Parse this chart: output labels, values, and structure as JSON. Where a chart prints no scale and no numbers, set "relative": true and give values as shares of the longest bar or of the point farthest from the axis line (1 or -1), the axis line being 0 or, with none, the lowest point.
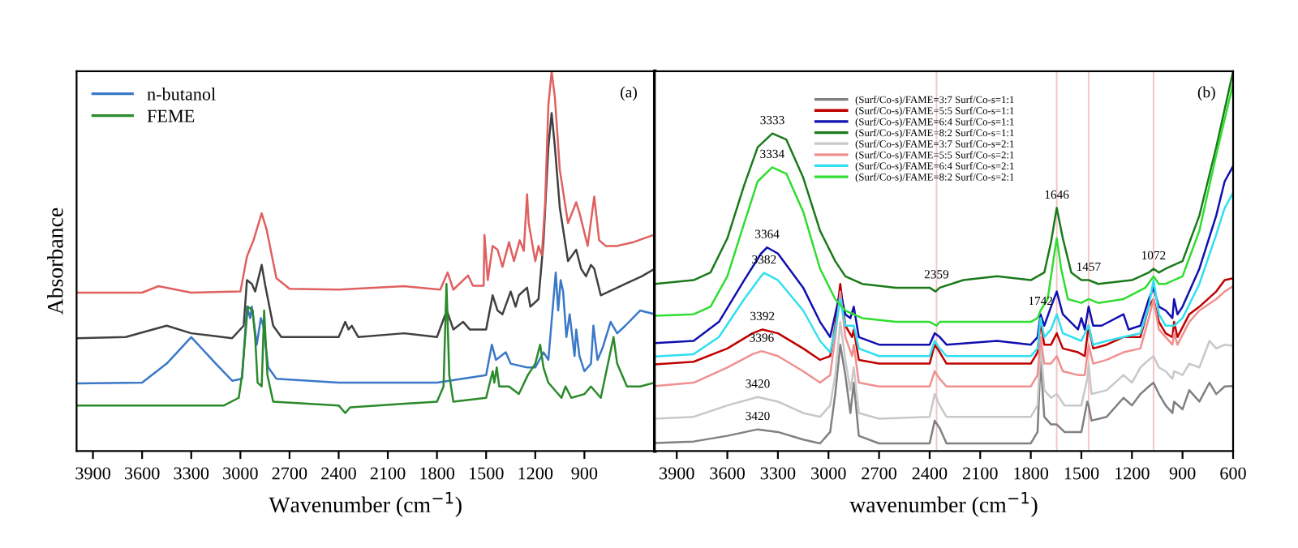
{
  "chart_data": [
    {
      "type": "line",
      "xlabel": "Wavenumber (cm$^{−1}$)",
      "ylabel": "Absorbance",
      "annotations": [
        "(a)"
      ],
      "relative": true,
      "tick_labels": "x",
      "legend": "top left",
      "grid": false,
      "xlim": [
        4000,
        470
      ],
      "xticks": [
        3900,
        3600,
        3300,
        3000,
        2700,
        2400,
        2100,
        1800,
        1500,
        1200,
        900
      ],
      "series": [
        {
          "color": "#404040",
          "x": [
            4000,
            3700,
            3450,
            3300,
            3050,
            2980,
            2960,
            2930,
            2910,
            2870,
            2850,
            2800,
            2750,
            2400,
            2360,
            2340,
            2320,
            2280,
            2000,
            1800,
            1740,
            1700,
            1640,
            1600,
            1500,
            1460,
            1430,
            1400,
            1350,
            1320,
            1300,
            1250,
            1230,
            1180,
            1150,
            1120,
            1100,
            1080,
            1050,
            1000,
            950,
            920,
            890,
            860,
            840,
            800,
            750,
            650,
            550,
            470
          ],
          "values": [
            0.297,
            0.3,
            0.33,
            0.31,
            0.297,
            0.33,
            0.45,
            0.44,
            0.42,
            0.49,
            0.44,
            0.33,
            0.3,
            0.3,
            0.34,
            0.32,
            0.33,
            0.3,
            0.31,
            0.3,
            0.37,
            0.32,
            0.34,
            0.32,
            0.32,
            0.41,
            0.37,
            0.36,
            0.42,
            0.38,
            0.41,
            0.43,
            0.38,
            0.4,
            0.55,
            0.8,
            0.89,
            0.8,
            0.64,
            0.5,
            0.53,
            0.48,
            0.46,
            0.49,
            0.48,
            0.41,
            0.42,
            0.44,
            0.46,
            0.48
          ]
        },
        {
          "color": "#e06060",
          "x": [
            4000,
            3600,
            3500,
            3300,
            3000,
            2960,
            2920,
            2870,
            2840,
            2780,
            2700,
            2400,
            2000,
            1780,
            1735,
            1700,
            1610,
            1580,
            1515,
            1510,
            1490,
            1460,
            1430,
            1400,
            1360,
            1330,
            1295,
            1270,
            1250,
            1240,
            1200,
            1180,
            1160,
            1140,
            1120,
            1100,
            1080,
            1050,
            1000,
            950,
            930,
            880,
            840,
            810,
            770,
            700,
            600,
            470
          ],
          "values": [
            0.417,
            0.417,
            0.434,
            0.417,
            0.42,
            0.512,
            0.555,
            0.626,
            0.583,
            0.455,
            0.427,
            0.425,
            0.434,
            0.425,
            0.47,
            0.425,
            0.462,
            0.435,
            0.435,
            0.569,
            0.45,
            0.54,
            0.53,
            0.485,
            0.55,
            0.5,
            0.555,
            0.527,
            0.676,
            0.6,
            0.5,
            0.54,
            0.515,
            0.65,
            0.91,
            1.0,
            0.93,
            0.74,
            0.6,
            0.655,
            0.627,
            0.54,
            0.67,
            0.555,
            0.54,
            0.54,
            0.55,
            0.57
          ]
        },
        {
          "name": "n-butanol",
          "color": "#3a78c8",
          "x": [
            4000,
            3600,
            3450,
            3300,
            3150,
            3050,
            2990,
            2960,
            2940,
            2930,
            2900,
            2875,
            2860,
            2830,
            2780,
            2400,
            1800,
            1500,
            1465,
            1440,
            1380,
            1350,
            1250,
            1200,
            1150,
            1120,
            1075,
            1060,
            1045,
            1030,
            1010,
            990,
            960,
            950,
            930,
            900,
            860,
            845,
            820,
            790,
            740,
            700,
            650,
            560,
            470
          ],
          "values": [
            0.178,
            0.18,
            0.23,
            0.3,
            0.23,
            0.185,
            0.19,
            0.38,
            0.35,
            0.38,
            0.28,
            0.35,
            0.33,
            0.22,
            0.19,
            0.18,
            0.18,
            0.2,
            0.28,
            0.24,
            0.26,
            0.23,
            0.22,
            0.22,
            0.26,
            0.24,
            0.47,
            0.37,
            0.45,
            0.42,
            0.3,
            0.36,
            0.25,
            0.32,
            0.25,
            0.21,
            0.23,
            0.33,
            0.24,
            0.27,
            0.34,
            0.31,
            0.33,
            0.37,
            0.36
          ]
        },
        {
          "name": "FEME",
          "color": "#2a8a2a",
          "x": [
            4000,
            3100,
            3010,
            2990,
            2955,
            2925,
            2910,
            2895,
            2870,
            2855,
            2835,
            2800,
            2400,
            2360,
            2330,
            1800,
            1760,
            1742,
            1725,
            1700,
            1500,
            1460,
            1450,
            1435,
            1420,
            1360,
            1300,
            1245,
            1200,
            1170,
            1150,
            1120,
            1040,
            1015,
            980,
            900,
            860,
            800,
            722,
            700,
            640,
            560,
            470
          ],
          "values": [
            0.12,
            0.12,
            0.14,
            0.2,
            0.38,
            0.37,
            0.3,
            0.18,
            0.17,
            0.37,
            0.2,
            0.13,
            0.12,
            0.1,
            0.115,
            0.13,
            0.17,
            0.44,
            0.2,
            0.13,
            0.14,
            0.21,
            0.18,
            0.22,
            0.17,
            0.17,
            0.15,
            0.2,
            0.23,
            0.28,
            0.22,
            0.18,
            0.14,
            0.17,
            0.14,
            0.15,
            0.17,
            0.14,
            0.3,
            0.23,
            0.17,
            0.17,
            0.18
          ]
        }
      ]
    },
    {
      "type": "line",
      "xlabel": "wavenumber (cm$^{−1}$)",
      "relative": true,
      "tick_labels": "x",
      "legend": "top",
      "grid": false,
      "xlim": [
        4030,
        600
      ],
      "xticks": [
        3900,
        3600,
        3300,
        3000,
        2700,
        2400,
        2100,
        1800,
        1500,
        1200,
        900,
        600
      ],
      "ref_lines": [
        {
          "axis": "x",
          "value": 2359,
          "color": "#f0c8c8"
        },
        {
          "axis": "x",
          "value": 1646,
          "color": "#f0c8c8"
        },
        {
          "axis": "x",
          "value": 1457,
          "color": "#f0c8c8"
        },
        {
          "axis": "x",
          "value": 1072,
          "color": "#f0c8c8"
        }
      ],
      "annotations": [
        "(b)",
        {
          "text": "3333",
          "x": 3333,
          "y": 0.836
        },
        {
          "text": "3334",
          "x": 3334,
          "y": 0.747
        },
        {
          "text": "3364",
          "x": 3364,
          "y": 0.536
        },
        {
          "text": "3382",
          "x": 3382,
          "y": 0.469
        },
        {
          "text": "3392",
          "x": 3392,
          "y": 0.32
        },
        {
          "text": "3396",
          "x": 3396,
          "y": 0.263
        },
        {
          "text": "3420",
          "x": 3420,
          "y": 0.142
        },
        {
          "text": "3420",
          "x": 3420,
          "y": 0.057
        },
        {
          "text": "2359",
          "x": 2359,
          "y": 0.43
        },
        {
          "text": "1742",
          "x": 1742,
          "y": 0.36
        },
        {
          "text": "1646",
          "x": 1646,
          "y": 0.64
        },
        {
          "text": "1457",
          "x": 1457,
          "y": 0.45
        },
        {
          "text": "1072",
          "x": 1072,
          "y": 0.48
        }
      ],
      "series": [
        {
          "name": "(Surf/Co-s)/FAME=3:7 Surf/Co-s=1:1",
          "color": "#808080",
          "x": [
            4030,
            3800,
            3600,
            3420,
            3300,
            3150,
            3050,
            2990,
            2960,
            2930,
            2900,
            2870,
            2850,
            2820,
            2700,
            2400,
            2370,
            2340,
            2300,
            1800,
            1760,
            1742,
            1720,
            1680,
            1646,
            1600,
            1500,
            1465,
            1457,
            1440,
            1350,
            1250,
            1200,
            1150,
            1100,
            1072,
            1040,
            1000,
            960,
            950,
            900,
            860,
            800,
            740,
            700,
            650,
            600
          ],
          "values": [
            0.021,
            0.025,
            0.04,
            0.057,
            0.05,
            0.03,
            0.02,
            0.05,
            0.15,
            0.28,
            0.2,
            0.1,
            0.18,
            0.04,
            0.02,
            0.02,
            0.08,
            0.06,
            0.02,
            0.02,
            0.05,
            0.24,
            0.09,
            0.07,
            0.07,
            0.05,
            0.05,
            0.13,
            0.12,
            0.08,
            0.09,
            0.14,
            0.12,
            0.15,
            0.17,
            0.18,
            0.15,
            0.12,
            0.1,
            0.13,
            0.11,
            0.16,
            0.13,
            0.18,
            0.15,
            0.17,
            0.171
          ]
        },
        {
          "name": "(Surf/Co-s)/FAME=5:5 Surf/Co-s=1:1",
          "color": "#c00000",
          "x": [
            4030,
            3800,
            3600,
            3450,
            3392,
            3300,
            3150,
            3050,
            2990,
            2960,
            2930,
            2900,
            2860,
            2850,
            2820,
            2700,
            2400,
            2370,
            2340,
            2300,
            1800,
            1760,
            1742,
            1720,
            1680,
            1646,
            1610,
            1520,
            1480,
            1457,
            1430,
            1350,
            1250,
            1150,
            1100,
            1072,
            1040,
            1000,
            960,
            950,
            930,
            860,
            800,
            700,
            650,
            600
          ],
          "values": [
            0.228,
            0.235,
            0.27,
            0.31,
            0.32,
            0.31,
            0.27,
            0.24,
            0.25,
            0.33,
            0.44,
            0.33,
            0.3,
            0.32,
            0.24,
            0.23,
            0.23,
            0.28,
            0.26,
            0.23,
            0.23,
            0.26,
            0.34,
            0.28,
            0.28,
            0.31,
            0.27,
            0.26,
            0.25,
            0.33,
            0.27,
            0.28,
            0.3,
            0.3,
            0.38,
            0.4,
            0.34,
            0.31,
            0.3,
            0.34,
            0.3,
            0.36,
            0.38,
            0.42,
            0.45,
            0.455
          ]
        },
        {
          "name": "(Surf/Co-s)/FAME=6:4 Surf/Co-s=1:1",
          "color": "#1010b0",
          "x": [
            4030,
            3800,
            3650,
            3500,
            3400,
            3364,
            3300,
            3150,
            3050,
            2990,
            2960,
            2930,
            2900,
            2870,
            2850,
            2820,
            2700,
            2400,
            2370,
            2340,
            2300,
            2000,
            1800,
            1760,
            1742,
            1720,
            1680,
            1646,
            1610,
            1520,
            1500,
            1480,
            1457,
            1430,
            1380,
            1250,
            1220,
            1150,
            1100,
            1072,
            1040,
            1000,
            960,
            950,
            930,
            900,
            800,
            700,
            650,
            600
          ],
          "values": [
            0.284,
            0.29,
            0.34,
            0.45,
            0.52,
            0.536,
            0.52,
            0.43,
            0.34,
            0.3,
            0.36,
            0.42,
            0.36,
            0.35,
            0.38,
            0.3,
            0.28,
            0.28,
            0.31,
            0.3,
            0.28,
            0.29,
            0.28,
            0.3,
            0.36,
            0.33,
            0.38,
            0.42,
            0.36,
            0.32,
            0.35,
            0.32,
            0.38,
            0.33,
            0.33,
            0.36,
            0.32,
            0.33,
            0.4,
            0.43,
            0.38,
            0.37,
            0.35,
            0.4,
            0.36,
            0.38,
            0.48,
            0.62,
            0.71,
            0.75
          ]
        },
        {
          "name": "(Surf/Co-s)/FAME=8:2 Surf/Co-s=1:1",
          "color": "#1a7a1a",
          "x": [
            4030,
            3800,
            3700,
            3600,
            3500,
            3420,
            3333,
            3250,
            3150,
            3050,
            2960,
            2900,
            2800,
            2600,
            2400,
            2365,
            2340,
            2200,
            2000,
            1800,
            1720,
            1680,
            1646,
            1610,
            1560,
            1500,
            1457,
            1400,
            1200,
            1100,
            1072,
            1040,
            1000,
            900,
            800,
            700,
            600
          ],
          "values": [
            0.44,
            0.45,
            0.47,
            0.56,
            0.7,
            0.8,
            0.836,
            0.82,
            0.72,
            0.58,
            0.5,
            0.46,
            0.44,
            0.43,
            0.43,
            0.42,
            0.43,
            0.45,
            0.46,
            0.45,
            0.47,
            0.55,
            0.64,
            0.56,
            0.47,
            0.45,
            0.45,
            0.44,
            0.45,
            0.47,
            0.48,
            0.47,
            0.48,
            0.5,
            0.62,
            0.8,
            1.0
          ]
        },
        {
          "name": "(Surf/Co-s)/FAME=3:7 Surf/Co-s=2:1",
          "color": "#c8c8c8",
          "x": [
            4030,
            3800,
            3600,
            3420,
            3300,
            3150,
            3050,
            2990,
            2960,
            2930,
            2900,
            2870,
            2850,
            2820,
            2700,
            2400,
            2370,
            2340,
            2300,
            1800,
            1760,
            1742,
            1720,
            1680,
            1646,
            1600,
            1500,
            1465,
            1457,
            1440,
            1350,
            1250,
            1200,
            1150,
            1100,
            1072,
            1040,
            1000,
            960,
            950,
            900,
            860,
            800,
            740,
            700,
            650,
            600
          ],
          "values": [
            0.085,
            0.09,
            0.12,
            0.142,
            0.13,
            0.1,
            0.09,
            0.12,
            0.2,
            0.34,
            0.24,
            0.16,
            0.22,
            0.1,
            0.085,
            0.09,
            0.15,
            0.12,
            0.09,
            0.09,
            0.12,
            0.28,
            0.16,
            0.14,
            0.15,
            0.12,
            0.12,
            0.19,
            0.23,
            0.15,
            0.16,
            0.2,
            0.18,
            0.22,
            0.24,
            0.25,
            0.22,
            0.21,
            0.19,
            0.21,
            0.2,
            0.23,
            0.22,
            0.29,
            0.27,
            0.28,
            0.277
          ]
        },
        {
          "name": "(Surf/Co-s)/FAME=5:5 Surf/Co-s=2:1",
          "color": "#f09090",
          "x": [
            4030,
            3800,
            3600,
            3450,
            3396,
            3300,
            3150,
            3050,
            2990,
            2960,
            2930,
            2900,
            2860,
            2850,
            2820,
            2700,
            2400,
            2370,
            2340,
            2300,
            1800,
            1760,
            1742,
            1720,
            1680,
            1646,
            1610,
            1520,
            1480,
            1457,
            1430,
            1350,
            1250,
            1150,
            1100,
            1072,
            1040,
            1000,
            960,
            950,
            930,
            860,
            800,
            700,
            650,
            600
          ],
          "values": [
            0.171,
            0.18,
            0.22,
            0.255,
            0.263,
            0.25,
            0.21,
            0.18,
            0.2,
            0.3,
            0.42,
            0.3,
            0.25,
            0.28,
            0.18,
            0.17,
            0.17,
            0.21,
            0.19,
            0.17,
            0.17,
            0.2,
            0.3,
            0.23,
            0.23,
            0.25,
            0.21,
            0.2,
            0.2,
            0.28,
            0.23,
            0.24,
            0.26,
            0.27,
            0.35,
            0.4,
            0.32,
            0.3,
            0.28,
            0.31,
            0.28,
            0.34,
            0.37,
            0.4,
            0.42,
            0.434
          ]
        },
        {
          "name": "(Surf/Co-s)/FAME=6:4 Surf/Co-s=2:1",
          "color": "#30e0f0",
          "x": [
            4030,
            3800,
            3650,
            3500,
            3400,
            3382,
            3300,
            3150,
            3050,
            2990,
            2960,
            2930,
            2900,
            2850,
            2820,
            2700,
            2400,
            2370,
            2340,
            2300,
            1800,
            1760,
            1742,
            1720,
            1680,
            1646,
            1610,
            1500,
            1457,
            1430,
            1350,
            1250,
            1150,
            1100,
            1072,
            1040,
            1000,
            950,
            900,
            800,
            700,
            650,
            600
          ],
          "values": [
            0.249,
            0.255,
            0.3,
            0.4,
            0.46,
            0.469,
            0.45,
            0.37,
            0.29,
            0.26,
            0.32,
            0.4,
            0.33,
            0.33,
            0.27,
            0.25,
            0.25,
            0.29,
            0.27,
            0.25,
            0.25,
            0.27,
            0.35,
            0.3,
            0.32,
            0.36,
            0.31,
            0.29,
            0.33,
            0.28,
            0.29,
            0.3,
            0.31,
            0.38,
            0.45,
            0.36,
            0.33,
            0.33,
            0.35,
            0.44,
            0.57,
            0.64,
            0.68
          ]
        },
        {
          "name": "(Surf/Co-s)/FAME=8:2 Surf/Co-s=2:1",
          "color": "#30dd30",
          "x": [
            4030,
            3800,
            3700,
            3600,
            3500,
            3420,
            3334,
            3250,
            3150,
            3050,
            2960,
            2900,
            2800,
            2600,
            2400,
            2359,
            2340,
            2000,
            1800,
            1760,
            1742,
            1700,
            1660,
            1646,
            1620,
            1580,
            1500,
            1457,
            1400,
            1250,
            1120,
            1072,
            1040,
            1000,
            900,
            800,
            700,
            600
          ],
          "values": [
            0.356,
            0.36,
            0.38,
            0.46,
            0.6,
            0.71,
            0.747,
            0.73,
            0.63,
            0.48,
            0.4,
            0.37,
            0.35,
            0.34,
            0.34,
            0.33,
            0.34,
            0.34,
            0.34,
            0.35,
            0.37,
            0.4,
            0.52,
            0.56,
            0.48,
            0.4,
            0.39,
            0.4,
            0.39,
            0.4,
            0.43,
            0.46,
            0.44,
            0.44,
            0.46,
            0.58,
            0.78,
            0.967
          ]
        }
      ]
    }
  ]
}
